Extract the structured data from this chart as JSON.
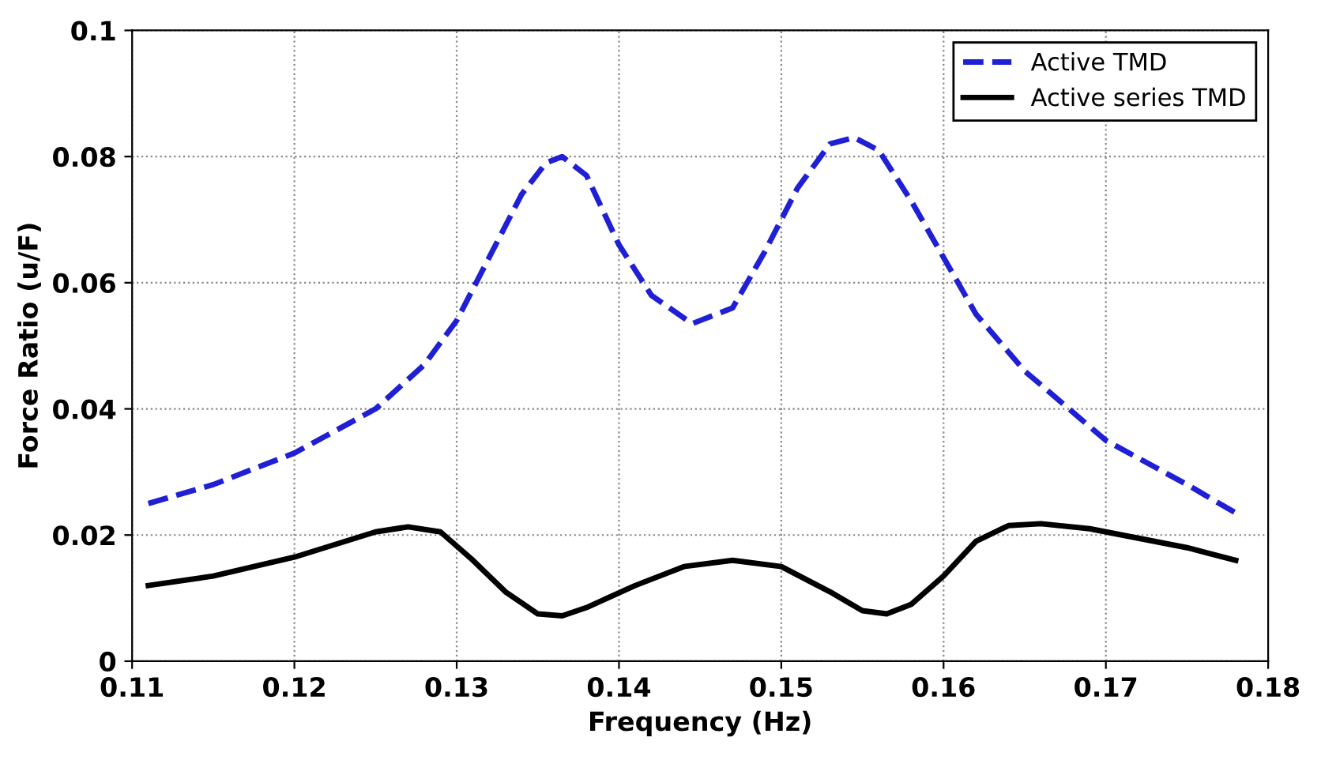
{
  "chart_data": {
    "type": "line",
    "xlabel": "Frequency (Hz)",
    "ylabel": "Force Ratio (u/F)",
    "xlim": [
      0.11,
      0.18
    ],
    "xticks": [
      0.11,
      0.12,
      0.13,
      0.14,
      0.15,
      0.16,
      0.17,
      0.18
    ],
    "ylim": [
      0,
      0.1
    ],
    "yticks": [
      0,
      0.02,
      0.04,
      0.06,
      0.08,
      0.1
    ],
    "grid": true,
    "legend": "top right",
    "series": [
      {
        "name": "Active TMD",
        "color": "#1f1fd6",
        "line_style": "dashed",
        "x": [
          0.111,
          0.115,
          0.12,
          0.125,
          0.128,
          0.13,
          0.132,
          0.134,
          0.1355,
          0.1365,
          0.138,
          0.14,
          0.142,
          0.1445,
          0.147,
          0.149,
          0.151,
          0.153,
          0.1545,
          0.156,
          0.158,
          0.16,
          0.162,
          0.165,
          0.17,
          0.175,
          0.178
        ],
        "values": [
          0.025,
          0.028,
          0.033,
          0.04,
          0.047,
          0.054,
          0.064,
          0.074,
          0.079,
          0.08,
          0.077,
          0.066,
          0.058,
          0.0535,
          0.056,
          0.065,
          0.075,
          0.082,
          0.083,
          0.081,
          0.073,
          0.064,
          0.055,
          0.046,
          0.035,
          0.028,
          0.0235
        ]
      },
      {
        "name": "Active series TMD",
        "color": "#000000",
        "line_style": "solid",
        "x": [
          0.111,
          0.115,
          0.12,
          0.125,
          0.127,
          0.129,
          0.131,
          0.133,
          0.135,
          0.1365,
          0.138,
          0.141,
          0.144,
          0.147,
          0.15,
          0.153,
          0.155,
          0.1565,
          0.158,
          0.16,
          0.162,
          0.164,
          0.166,
          0.169,
          0.172,
          0.175,
          0.178
        ],
        "values": [
          0.012,
          0.0135,
          0.0165,
          0.0205,
          0.0213,
          0.0205,
          0.016,
          0.011,
          0.0075,
          0.0072,
          0.0085,
          0.012,
          0.015,
          0.016,
          0.015,
          0.011,
          0.008,
          0.0075,
          0.009,
          0.0135,
          0.019,
          0.0215,
          0.0218,
          0.021,
          0.0195,
          0.018,
          0.016
        ]
      }
    ]
  }
}
